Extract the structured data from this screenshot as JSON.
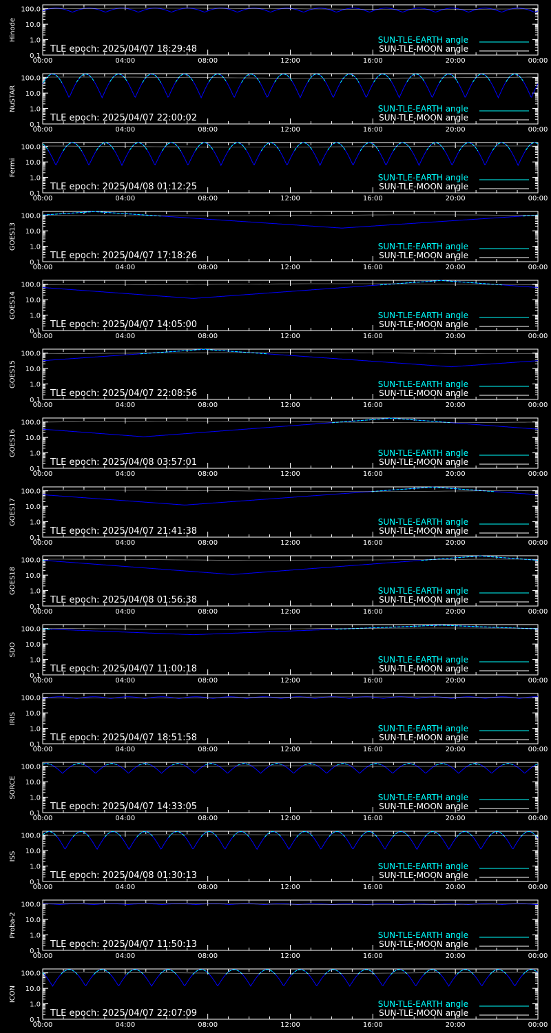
{
  "colors": {
    "background": "#000000",
    "axes": "#ffffff",
    "earth": "#00ffff",
    "moon": "#ffffff",
    "tle_curve": "#0000ff"
  },
  "chart_data": [
    {
      "type": "line",
      "ylabel": "Hinode",
      "epoch_label": "TLE epoch: 2025/04/07 18:29:48",
      "legend": [
        "SUN-TLE-EARTH angle",
        "SUN-TLE-MOON angle"
      ],
      "x_ticks": [
        "00:00",
        "04:00",
        "08:00",
        "12:00",
        "16:00",
        "20:00",
        "00:00"
      ],
      "y_ticks": [
        "0.1",
        "1.0",
        "10.0",
        "100.0"
      ],
      "y_scale": "log",
      "ylim": [
        0.1,
        180
      ],
      "x_range_hours": [
        0,
        24
      ],
      "pattern": {
        "kind": "orbit",
        "period_h": 1.6,
        "min": 60,
        "max": 110,
        "phase": 0.1
      }
    },
    {
      "type": "line",
      "ylabel": "NuSTAR",
      "epoch_label": "TLE epoch: 2025/04/07 22:00:02",
      "legend": [
        "SUN-TLE-EARTH angle",
        "SUN-TLE-MOON angle"
      ],
      "x_ticks": [
        "00:00",
        "04:00",
        "08:00",
        "12:00",
        "16:00",
        "20:00",
        "00:00"
      ],
      "y_ticks": [
        "0.1",
        "1.0",
        "10.0",
        "100.0"
      ],
      "y_scale": "log",
      "ylim": [
        0.1,
        180
      ],
      "x_range_hours": [
        0,
        24
      ],
      "pattern": {
        "kind": "orbit",
        "period_h": 1.6,
        "min": 5,
        "max": 170,
        "phase": 0.2
      }
    },
    {
      "type": "line",
      "ylabel": "Fermi",
      "epoch_label": "TLE epoch: 2025/04/08 01:12:25",
      "legend": [
        "SUN-TLE-EARTH angle",
        "SUN-TLE-MOON angle"
      ],
      "x_ticks": [
        "00:00",
        "04:00",
        "08:00",
        "12:00",
        "16:00",
        "20:00",
        "00:00"
      ],
      "y_ticks": [
        "0.1",
        "1.0",
        "10.0",
        "100.0"
      ],
      "y_scale": "log",
      "ylim": [
        0.1,
        180
      ],
      "x_range_hours": [
        0,
        24
      ],
      "pattern": {
        "kind": "orbit",
        "period_h": 1.6,
        "min": 6,
        "max": 175,
        "phase": 0.6
      }
    },
    {
      "type": "line",
      "ylabel": "GOES13",
      "epoch_label": "TLE epoch: 2025/04/07 17:18:26",
      "legend": [
        "SUN-TLE-EARTH angle",
        "SUN-TLE-MOON angle"
      ],
      "x_ticks": [
        "00:00",
        "04:00",
        "08:00",
        "12:00",
        "16:00",
        "20:00",
        "00:00"
      ],
      "y_ticks": [
        "0.1",
        "1.0",
        "10.0",
        "100.0"
      ],
      "y_scale": "log",
      "ylim": [
        0.1,
        180
      ],
      "x_range_hours": [
        0,
        24
      ],
      "pattern": {
        "kind": "geo",
        "min_time_h": 14.5,
        "min": 15,
        "max": 175
      }
    },
    {
      "type": "line",
      "ylabel": "GOES14",
      "epoch_label": "TLE epoch: 2025/04/07 14:05:00",
      "legend": [
        "SUN-TLE-EARTH angle",
        "SUN-TLE-MOON angle"
      ],
      "x_ticks": [
        "00:00",
        "04:00",
        "08:00",
        "12:00",
        "16:00",
        "20:00",
        "00:00"
      ],
      "y_ticks": [
        "0.1",
        "1.0",
        "10.0",
        "100.0"
      ],
      "y_scale": "log",
      "ylim": [
        0.1,
        180
      ],
      "x_range_hours": [
        0,
        24
      ],
      "pattern": {
        "kind": "geo",
        "min_time_h": 7.3,
        "min": 12,
        "max": 175
      }
    },
    {
      "type": "line",
      "ylabel": "GOES15",
      "epoch_label": "TLE epoch: 2025/04/07 22:08:56",
      "legend": [
        "SUN-TLE-EARTH angle",
        "SUN-TLE-MOON angle"
      ],
      "x_ticks": [
        "00:00",
        "04:00",
        "08:00",
        "12:00",
        "16:00",
        "20:00",
        "00:00"
      ],
      "y_ticks": [
        "0.1",
        "1.0",
        "10.0",
        "100.0"
      ],
      "y_scale": "log",
      "ylim": [
        0.1,
        180
      ],
      "x_range_hours": [
        0,
        24
      ],
      "pattern": {
        "kind": "geo",
        "min_time_h": 19.8,
        "min": 13,
        "max": 175
      }
    },
    {
      "type": "line",
      "ylabel": "GOES16",
      "epoch_label": "TLE epoch: 2025/04/08 03:57:01",
      "legend": [
        "SUN-TLE-EARTH angle",
        "SUN-TLE-MOON angle"
      ],
      "x_ticks": [
        "00:00",
        "04:00",
        "08:00",
        "12:00",
        "16:00",
        "20:00",
        "00:00"
      ],
      "y_ticks": [
        "0.1",
        "1.0",
        "10.0",
        "100.0"
      ],
      "y_scale": "log",
      "ylim": [
        0.1,
        180
      ],
      "x_range_hours": [
        0,
        24
      ],
      "pattern": {
        "kind": "geo",
        "min_time_h": 4.9,
        "min": 11,
        "max": 175
      }
    },
    {
      "type": "line",
      "ylabel": "GOES17",
      "epoch_label": "TLE epoch: 2025/04/07 21:41:38",
      "legend": [
        "SUN-TLE-EARTH angle",
        "SUN-TLE-MOON angle"
      ],
      "x_ticks": [
        "00:00",
        "04:00",
        "08:00",
        "12:00",
        "16:00",
        "20:00",
        "00:00"
      ],
      "y_ticks": [
        "0.1",
        "1.0",
        "10.0",
        "100.0"
      ],
      "y_scale": "log",
      "ylim": [
        0.1,
        180
      ],
      "x_range_hours": [
        0,
        24
      ],
      "pattern": {
        "kind": "geo",
        "min_time_h": 6.9,
        "min": 12,
        "max": 175
      }
    },
    {
      "type": "line",
      "ylabel": "GOES18",
      "epoch_label": "TLE epoch: 2025/04/08 01:56:38",
      "legend": [
        "SUN-TLE-EARTH angle",
        "SUN-TLE-MOON angle"
      ],
      "x_ticks": [
        "00:00",
        "04:00",
        "08:00",
        "12:00",
        "16:00",
        "20:00",
        "00:00"
      ],
      "y_ticks": [
        "0.1",
        "1.0",
        "10.0",
        "100.0"
      ],
      "y_scale": "log",
      "ylim": [
        0.1,
        180
      ],
      "x_range_hours": [
        0,
        24
      ],
      "pattern": {
        "kind": "geo",
        "min_time_h": 9.2,
        "min": 11,
        "max": 175
      }
    },
    {
      "type": "line",
      "ylabel": "SDO",
      "epoch_label": "TLE epoch: 2025/04/07 11:00:18",
      "legend": [
        "SUN-TLE-EARTH angle",
        "SUN-TLE-MOON angle"
      ],
      "x_ticks": [
        "00:00",
        "04:00",
        "08:00",
        "12:00",
        "16:00",
        "20:00",
        "00:00"
      ],
      "y_ticks": [
        "0.1",
        "1.0",
        "10.0",
        "100.0"
      ],
      "y_scale": "log",
      "ylim": [
        0.1,
        180
      ],
      "x_range_hours": [
        0,
        24
      ],
      "pattern": {
        "kind": "geo",
        "min_time_h": 7.3,
        "min": 40,
        "max": 165
      }
    },
    {
      "type": "line",
      "ylabel": "IRIS",
      "epoch_label": "TLE epoch: 2025/04/07 18:51:58",
      "legend": [
        "SUN-TLE-EARTH angle",
        "SUN-TLE-MOON angle"
      ],
      "x_ticks": [
        "00:00",
        "04:00",
        "08:00",
        "12:00",
        "16:00",
        "20:00",
        "00:00"
      ],
      "y_ticks": [
        "0.1",
        "1.0",
        "10.0",
        "100.0"
      ],
      "y_scale": "log",
      "ylim": [
        0.1,
        180
      ],
      "x_range_hours": [
        0,
        24
      ],
      "pattern": {
        "kind": "orbit",
        "period_h": 1.65,
        "min": 85,
        "max": 110,
        "phase": 0.0
      }
    },
    {
      "type": "line",
      "ylabel": "SORCE",
      "epoch_label": "TLE epoch: 2025/04/07 14:33:05",
      "legend": [
        "SUN-TLE-EARTH angle",
        "SUN-TLE-MOON angle"
      ],
      "x_ticks": [
        "00:00",
        "04:00",
        "08:00",
        "12:00",
        "16:00",
        "20:00",
        "00:00"
      ],
      "y_ticks": [
        "0.1",
        "1.0",
        "10.0",
        "100.0"
      ],
      "y_scale": "log",
      "ylim": [
        0.1,
        180
      ],
      "x_range_hours": [
        0,
        24
      ],
      "pattern": {
        "kind": "orbit",
        "period_h": 1.6,
        "min": 35,
        "max": 150,
        "phase": 0.4
      }
    },
    {
      "type": "line",
      "ylabel": "ISS",
      "epoch_label": "TLE epoch: 2025/04/08 01:30:13",
      "legend": [
        "SUN-TLE-EARTH angle",
        "SUN-TLE-MOON angle"
      ],
      "x_ticks": [
        "00:00",
        "04:00",
        "08:00",
        "12:00",
        "16:00",
        "20:00",
        "00:00"
      ],
      "y_ticks": [
        "0.1",
        "1.0",
        "10.0",
        "100.0"
      ],
      "y_scale": "log",
      "ylim": [
        0.1,
        180
      ],
      "x_range_hours": [
        0,
        24
      ],
      "pattern": {
        "kind": "orbit",
        "period_h": 1.55,
        "min": 12,
        "max": 170,
        "phase": 0.3
      }
    },
    {
      "type": "line",
      "ylabel": "Proba-2",
      "epoch_label": "TLE epoch: 2025/04/07 11:50:13",
      "legend": [
        "SUN-TLE-EARTH angle",
        "SUN-TLE-MOON angle"
      ],
      "x_ticks": [
        "00:00",
        "04:00",
        "08:00",
        "12:00",
        "16:00",
        "20:00",
        "00:00"
      ],
      "y_ticks": [
        "0.1",
        "1.0",
        "10.0",
        "100.0"
      ],
      "y_scale": "log",
      "ylim": [
        0.1,
        180
      ],
      "x_range_hours": [
        0,
        24
      ],
      "pattern": {
        "kind": "orbit",
        "period_h": 1.65,
        "min": 92,
        "max": 105,
        "phase": 0.5
      }
    },
    {
      "type": "line",
      "ylabel": "ICON",
      "epoch_label": "TLE epoch: 2025/04/07 22:07:09",
      "legend": [
        "SUN-TLE-EARTH angle",
        "SUN-TLE-MOON angle"
      ],
      "x_ticks": [
        "00:00",
        "04:00",
        "08:00",
        "12:00",
        "16:00",
        "20:00",
        "00:00"
      ],
      "y_ticks": [
        "0.1",
        "1.0",
        "10.0",
        "100.0"
      ],
      "y_scale": "log",
      "ylim": [
        0.1,
        180
      ],
      "x_range_hours": [
        0,
        24
      ],
      "pattern": {
        "kind": "orbit",
        "period_h": 1.6,
        "min": 14,
        "max": 165,
        "phase": 0.7
      }
    }
  ]
}
